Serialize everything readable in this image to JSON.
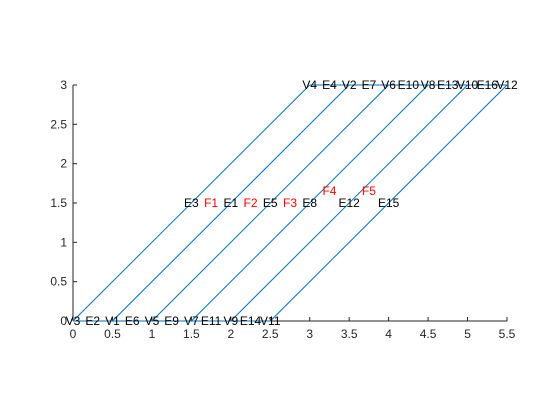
{
  "chart_data": {
    "type": "line",
    "title": "",
    "xlabel": "",
    "ylabel": "",
    "xlim": [
      0,
      5.5
    ],
    "ylim": [
      0,
      3
    ],
    "grid": false,
    "box": "partial-axes",
    "x_ticks": [
      "0",
      "0.5",
      "1",
      "1.5",
      "2",
      "2.5",
      "3",
      "3.5",
      "4",
      "4.5",
      "5",
      "5.5"
    ],
    "y_ticks": [
      "0",
      "0.5",
      "1",
      "1.5",
      "2",
      "2.5",
      "3"
    ],
    "colors": {
      "lines": "#0072bd",
      "face_labels": "#ff0000",
      "text": "#000000",
      "axes": "#262626"
    },
    "vertices": [
      {
        "name": "V1",
        "x": 0.5,
        "y": 0
      },
      {
        "name": "V2",
        "x": 3.5,
        "y": 3
      },
      {
        "name": "V3",
        "x": 0,
        "y": 0
      },
      {
        "name": "V4",
        "x": 3,
        "y": 3
      },
      {
        "name": "V5",
        "x": 1,
        "y": 0
      },
      {
        "name": "V6",
        "x": 4,
        "y": 3
      },
      {
        "name": "V7",
        "x": 1.5,
        "y": 0
      },
      {
        "name": "V8",
        "x": 4.5,
        "y": 3
      },
      {
        "name": "V9",
        "x": 2,
        "y": 0
      },
      {
        "name": "V10",
        "x": 5,
        "y": 3
      },
      {
        "name": "V11",
        "x": 2.5,
        "y": 0
      },
      {
        "name": "V12",
        "x": 5.5,
        "y": 3
      }
    ],
    "edges": [
      {
        "name": "E1",
        "from": "V1",
        "to": "V2"
      },
      {
        "name": "E2",
        "from": "V3",
        "to": "V1"
      },
      {
        "name": "E3",
        "from": "V3",
        "to": "V4"
      },
      {
        "name": "E4",
        "from": "V4",
        "to": "V2"
      },
      {
        "name": "E5",
        "from": "V5",
        "to": "V6"
      },
      {
        "name": "E6",
        "from": "V1",
        "to": "V5"
      },
      {
        "name": "E7",
        "from": "V2",
        "to": "V6"
      },
      {
        "name": "E8",
        "from": "V7",
        "to": "V8"
      },
      {
        "name": "E9",
        "from": "V5",
        "to": "V7"
      },
      {
        "name": "E10",
        "from": "V6",
        "to": "V8"
      },
      {
        "name": "E11",
        "from": "V7",
        "to": "V9"
      },
      {
        "name": "E12",
        "from": "V9",
        "to": "V10"
      },
      {
        "name": "E13",
        "from": "V8",
        "to": "V10"
      },
      {
        "name": "E14",
        "from": "V9",
        "to": "V11"
      },
      {
        "name": "E15",
        "from": "V11",
        "to": "V12"
      },
      {
        "name": "E16",
        "from": "V10",
        "to": "V12"
      }
    ],
    "faces": [
      {
        "name": "F1",
        "x": 1.75,
        "y": 1.5
      },
      {
        "name": "F2",
        "x": 2.25,
        "y": 1.5
      },
      {
        "name": "F3",
        "x": 2.75,
        "y": 1.5
      },
      {
        "name": "F4",
        "x": 3.25,
        "y": 1.65
      },
      {
        "name": "F5",
        "x": 3.75,
        "y": 1.65
      }
    ]
  }
}
